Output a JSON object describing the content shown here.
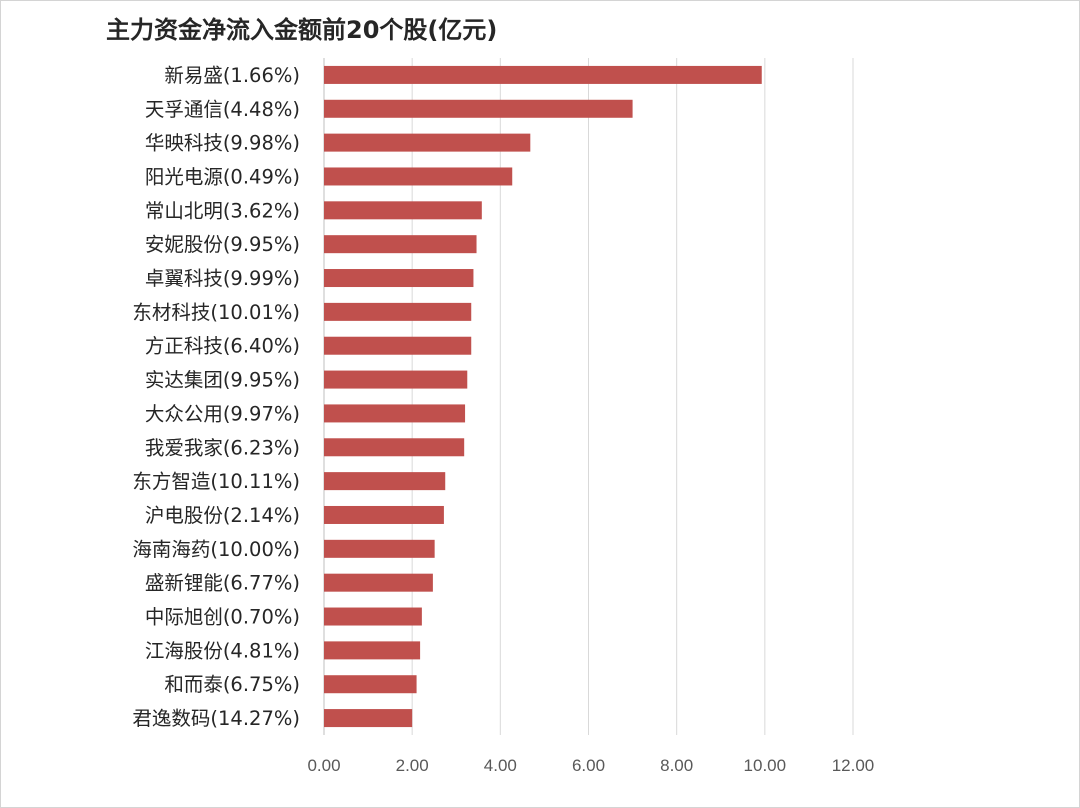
{
  "chart_data": {
    "type": "bar",
    "orientation": "horizontal",
    "title": "主力资金净流入金额前20个股(亿元)",
    "categories": [
      "新易盛(1.66%)",
      "天孚通信(4.48%)",
      "华映科技(9.98%)",
      "阳光电源(0.49%)",
      "常山北明(3.62%)",
      "安妮股份(9.95%)",
      "卓翼科技(9.99%)",
      "东材科技(10.01%)",
      "方正科技(6.40%)",
      "实达集团(9.95%)",
      "大众公用(9.97%)",
      "我爱我家(6.23%)",
      "东方智造(10.11%)",
      "沪电股份(2.14%)",
      "海南海药(10.00%)",
      "盛新锂能(6.77%)",
      "中际旭创(0.70%)",
      "江海股份(4.81%)",
      "和而泰(6.75%)",
      "君逸数码(14.27%)"
    ],
    "values": [
      9.93,
      7.0,
      4.68,
      4.27,
      3.58,
      3.46,
      3.39,
      3.34,
      3.34,
      3.25,
      3.2,
      3.18,
      2.75,
      2.72,
      2.51,
      2.47,
      2.22,
      2.18,
      2.1,
      2.0
    ],
    "xlim": [
      0,
      12
    ],
    "x_ticks": [
      "0.00",
      "2.00",
      "4.00",
      "6.00",
      "8.00",
      "10.00",
      "12.00"
    ],
    "grid": true,
    "bar_color": "#c0504d",
    "xlabel": "",
    "ylabel": ""
  }
}
